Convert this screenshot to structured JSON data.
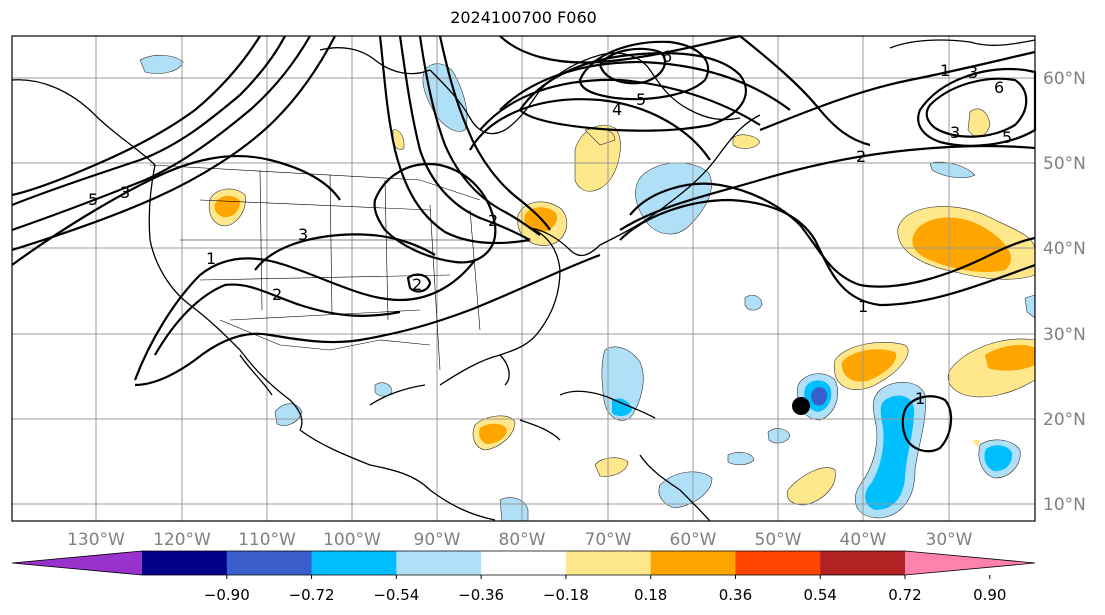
{
  "title": "2024100700 F060",
  "lat_labels": [
    "60°N",
    "50°N",
    "40°N",
    "30°N",
    "20°N",
    "10°N"
  ],
  "lon_labels": [
    "130°W",
    "120°W",
    "110°W",
    "100°W",
    "90°W",
    "80°W",
    "70°W",
    "60°W",
    "50°W",
    "40°W",
    "30°W"
  ],
  "colorbar": {
    "ticks": [
      "−0.90",
      "−0.72",
      "−0.54",
      "−0.36",
      "−0.18",
      "0.18",
      "0.36",
      "0.54",
      "0.72",
      "0.90"
    ],
    "colors": [
      "#9932cc",
      "#00008b",
      "#3a5fcd",
      "#00bfff",
      "#b0e0f8",
      "#ffffff",
      "#ffe88c",
      "#ffa500",
      "#ff4500",
      "#b22222",
      "#ff82ab"
    ]
  },
  "contour_labels": [
    "1",
    "2",
    "3",
    "4",
    "5",
    "6",
    "3",
    "5",
    "6",
    "2",
    "1",
    "5",
    "3",
    "2",
    "3",
    "1",
    "2",
    "1"
  ],
  "marker": "storm-center-dot"
}
